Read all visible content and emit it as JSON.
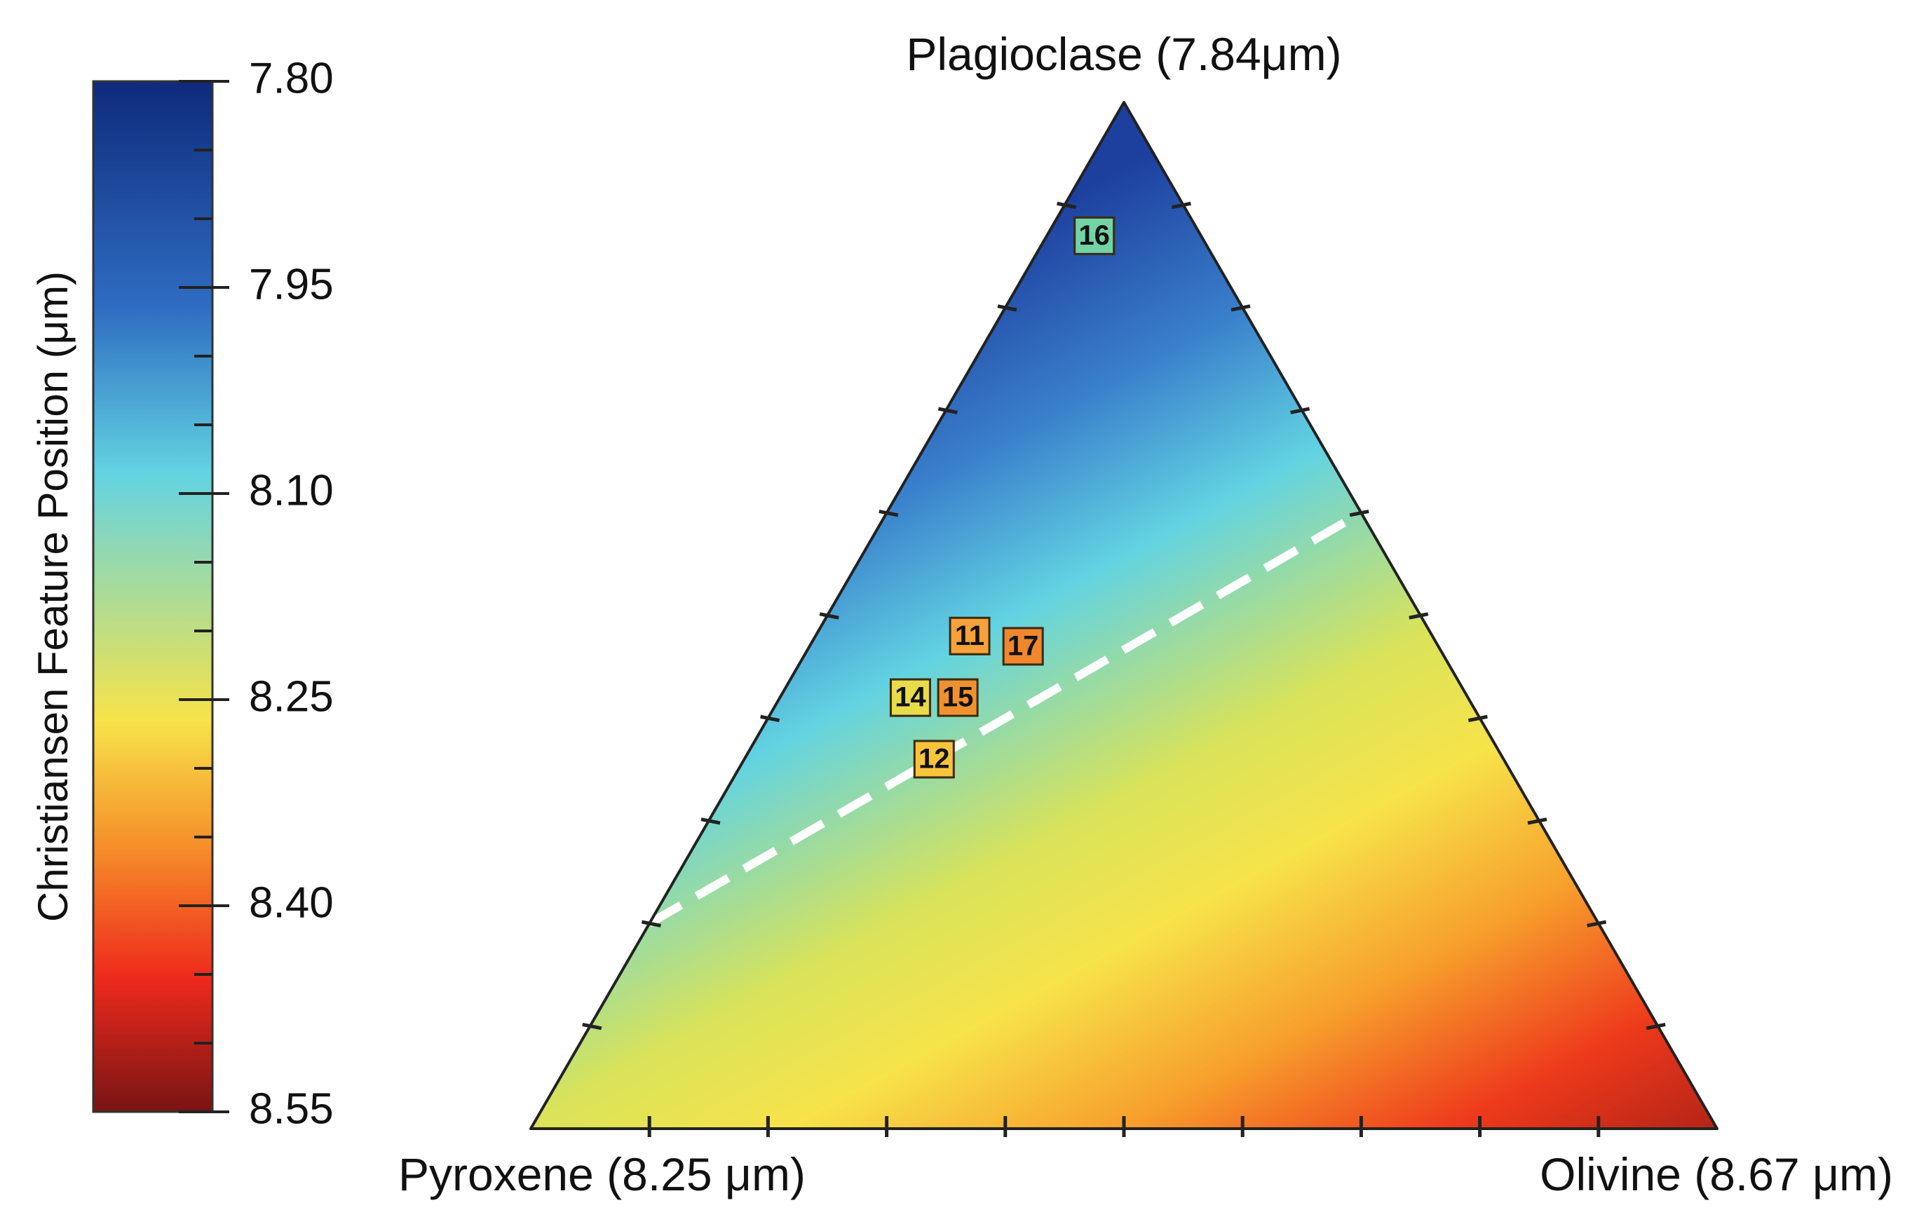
{
  "chart_data": {
    "type": "ternary",
    "vertices": {
      "top": "Plagioclase (7.84μm)",
      "left": "Pyroxene (8.25 μm)",
      "right": "Olivine (8.67 μm)"
    },
    "vertex_values_um": {
      "top": 7.84,
      "left": 8.25,
      "right": 8.67
    },
    "colorbar": {
      "title": "Christiansen Feature Position (μm)",
      "min": 7.8,
      "max": 8.55,
      "ticks": [
        "7.80",
        "7.95",
        "8.10",
        "8.25",
        "8.40",
        "8.55"
      ],
      "minor_step": 0.05,
      "colors": [
        "#0e2a7c",
        "#2f6dc2",
        "#62d3e2",
        "#f7e34a",
        "#f6902a",
        "#ee2a1c",
        "#781414"
      ],
      "color_stops": [
        0,
        0.22,
        0.38,
        0.62,
        0.74,
        0.87,
        1
      ]
    },
    "ternary_ticks_per_side": 10,
    "boundary_line": {
      "style": "dashed",
      "color": "#ffffff",
      "from": {
        "plagioclase": 0.2,
        "pyroxene": 0.8,
        "olivine": 0.0
      },
      "to": {
        "plagioclase": 0.6,
        "pyroxene": 0.0,
        "olivine": 0.4
      }
    },
    "samples": [
      {
        "label": "16",
        "plagioclase": 0.87,
        "pyroxene": 0.09,
        "olivine": 0.04,
        "color": "#72d3a6"
      },
      {
        "label": "11",
        "plagioclase": 0.48,
        "pyroxene": 0.39,
        "olivine": 0.13,
        "color": "#f6a13a"
      },
      {
        "label": "17",
        "plagioclase": 0.47,
        "pyroxene": 0.35,
        "olivine": 0.18,
        "color": "#f0872e"
      },
      {
        "label": "14",
        "plagioclase": 0.42,
        "pyroxene": 0.47,
        "olivine": 0.11,
        "color": "#e8dc4a"
      },
      {
        "label": "15",
        "plagioclase": 0.42,
        "pyroxene": 0.43,
        "olivine": 0.15,
        "color": "#f0912f"
      },
      {
        "label": "12",
        "plagioclase": 0.36,
        "pyroxene": 0.48,
        "olivine": 0.16,
        "color": "#f8c43c"
      }
    ]
  }
}
